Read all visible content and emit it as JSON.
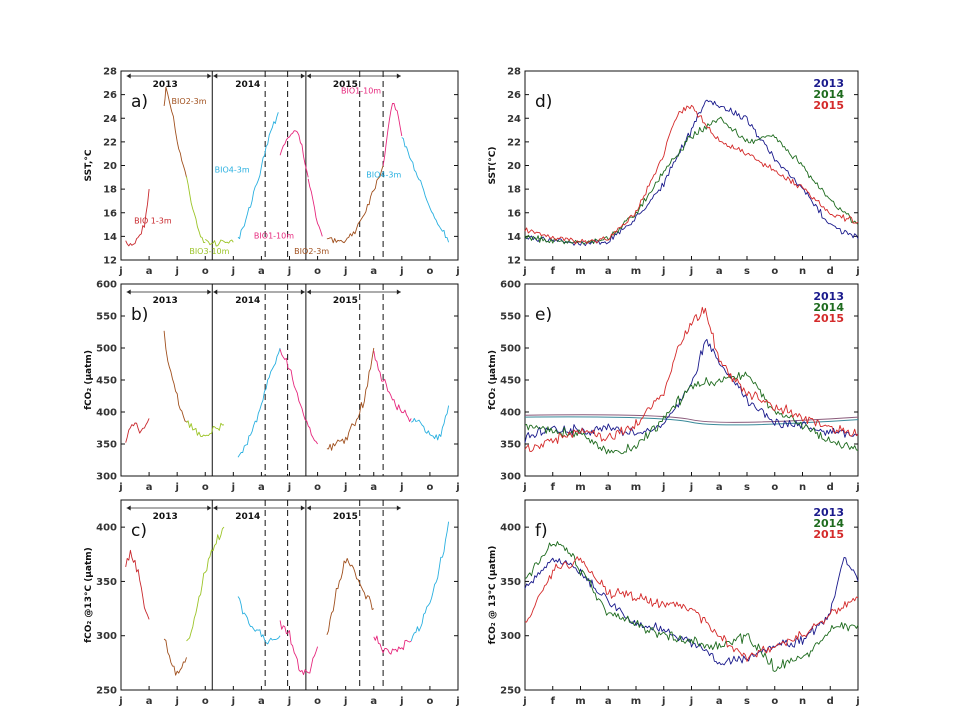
{
  "colors": {
    "y2013": "#1a1a8c",
    "y2014": "#1e6b1e",
    "y2015": "#d42a2a",
    "bio1_3m": "#c8282d",
    "bio2_3m": "#a0501e",
    "bio3_10m": "#9cc428",
    "bio4_3m": "#2ab0e0",
    "bio1_10m": "#e6287d"
  },
  "chart_data": [
    {
      "id": "a",
      "type": "line",
      "panel_label": "a)",
      "title": "",
      "xlabel": "",
      "ylabel": "SST,°C",
      "ylim": [
        12,
        28
      ],
      "yticks": [
        12,
        14,
        16,
        18,
        20,
        22,
        24,
        26,
        28
      ],
      "xlim": [
        0,
        36
      ],
      "xtick_labels": [
        "j",
        "a",
        "j",
        "o",
        "j",
        "a",
        "j",
        "o",
        "j",
        "a",
        "j",
        "o",
        "j"
      ],
      "x_unit": "months since Jan 2013",
      "year_labels": [
        "2013",
        "2014",
        "2015"
      ],
      "annotations": [
        {
          "text": "BIO2-3m",
          "x": 5.4,
          "y": 25.2,
          "color_key": "bio2_3m"
        },
        {
          "text": "BIO 1-3m",
          "x": 1.4,
          "y": 15.1,
          "color_key": "bio1_3m"
        },
        {
          "text": "BIO3-10m",
          "x": 7.3,
          "y": 12.5,
          "color_key": "bio3_10m"
        },
        {
          "text": "BIO4-3m",
          "x": 10.0,
          "y": 19.4,
          "color_key": "bio4_3m"
        },
        {
          "text": "BIO1-10m",
          "x": 14.2,
          "y": 13.8,
          "color_key": "bio1_10m"
        },
        {
          "text": "BIO2-3m",
          "x": 18.5,
          "y": 12.5,
          "color_key": "bio2_3m"
        },
        {
          "text": "BIO1-10m",
          "x": 23.5,
          "y": 26.1,
          "color_key": "bio1_10m"
        },
        {
          "text": "BIO4-3m",
          "x": 26.2,
          "y": 19.0,
          "color_key": "bio4_3m"
        }
      ],
      "series": [
        {
          "color_key": "bio1_3m",
          "x": [
            0.5,
            1.0,
            1.5,
            2.0,
            2.5,
            3.0
          ],
          "y": [
            13.3,
            13.3,
            13.5,
            14.2,
            15.0,
            18.0
          ]
        },
        {
          "color_key": "bio2_3m",
          "x": [
            4.6,
            4.8,
            5.2,
            5.6,
            6.0,
            6.5,
            7.0
          ],
          "y": [
            25.0,
            26.5,
            25.5,
            24.0,
            22.0,
            20.5,
            19.0
          ]
        },
        {
          "color_key": "bio3_10m",
          "x": [
            7.0,
            7.5,
            8.0,
            8.5,
            9.0
          ],
          "y": [
            19.0,
            17.0,
            15.5,
            14.0,
            13.5
          ]
        },
        {
          "color_key": "bio3_10m",
          "x": [
            9.0,
            10.0,
            11.0,
            12.0
          ],
          "y": [
            13.5,
            13.4,
            13.6,
            13.5
          ]
        },
        {
          "color_key": "bio4_3m",
          "x": [
            12.5,
            13.0,
            14.0,
            15.0,
            16.0,
            16.8
          ],
          "y": [
            13.6,
            14.5,
            17.0,
            20.0,
            23.0,
            24.5
          ]
        },
        {
          "color_key": "bio1_10m",
          "x": [
            17.0,
            17.5,
            18.0,
            18.5,
            19.0,
            19.5,
            20.0
          ],
          "y": [
            21.0,
            22.0,
            22.5,
            23.0,
            22.5,
            21.0,
            19.0
          ]
        },
        {
          "color_key": "bio1_10m",
          "x": [
            20.0,
            20.5,
            21.0,
            21.5
          ],
          "y": [
            19.0,
            17.0,
            15.0,
            14.0
          ]
        },
        {
          "color_key": "bio2_3m",
          "x": [
            22.0,
            23.0,
            24.0,
            25.0,
            26.0,
            27.0,
            28.0
          ],
          "y": [
            14.0,
            13.5,
            13.6,
            14.5,
            16.0,
            18.0,
            20.0
          ]
        },
        {
          "color_key": "bio1_10m",
          "x": [
            28.0,
            28.5,
            29.0,
            29.5,
            30.0
          ],
          "y": [
            20.0,
            23.0,
            25.5,
            24.5,
            22.5
          ]
        },
        {
          "color_key": "bio4_3m",
          "x": [
            30.0,
            31.0,
            32.0,
            33.0,
            34.0,
            35.0
          ],
          "y": [
            22.5,
            20.5,
            18.5,
            16.5,
            15.0,
            13.5
          ]
        }
      ]
    },
    {
      "id": "b",
      "type": "line",
      "panel_label": "b)",
      "title": "",
      "xlabel": "",
      "ylabel": "fCO₂ (μatm)",
      "ylim": [
        300,
        600
      ],
      "yticks": [
        300,
        350,
        400,
        450,
        500,
        550,
        600
      ],
      "xlim": [
        0,
        36
      ],
      "xtick_labels": [
        "j",
        "a",
        "j",
        "o",
        "j",
        "a",
        "j",
        "o",
        "j",
        "a",
        "j",
        "o",
        "j"
      ],
      "year_labels": [
        "2013",
        "2014",
        "2015"
      ],
      "series": [
        {
          "color_key": "bio1_3m",
          "x": [
            0.5,
            1.0,
            1.5,
            2.0,
            2.5,
            3.0
          ],
          "y": [
            360,
            375,
            380,
            370,
            380,
            390
          ]
        },
        {
          "color_key": "bio2_3m",
          "x": [
            4.6,
            5.0,
            5.5,
            6.0,
            6.5,
            7.0
          ],
          "y": [
            520,
            480,
            450,
            420,
            400,
            385
          ]
        },
        {
          "color_key": "bio3_10m",
          "x": [
            7.0,
            8.0,
            9.0,
            10.0,
            11.0
          ],
          "y": [
            385,
            370,
            365,
            375,
            380
          ]
        },
        {
          "color_key": "bio4_3m",
          "x": [
            12.5,
            13.0,
            14.0,
            15.0,
            16.0,
            17.0
          ],
          "y": [
            330,
            340,
            370,
            410,
            460,
            500
          ]
        },
        {
          "color_key": "bio1_10m",
          "x": [
            17.0,
            18.0,
            19.0,
            20.0,
            21.0
          ],
          "y": [
            500,
            470,
            420,
            380,
            350
          ]
        },
        {
          "color_key": "bio2_3m",
          "x": [
            22.0,
            23.0,
            24.0,
            25.0,
            26.0,
            27.0
          ],
          "y": [
            340,
            350,
            360,
            380,
            420,
            500
          ]
        },
        {
          "color_key": "bio1_10m",
          "x": [
            27.0,
            28.0,
            29.0,
            30.0,
            31.0
          ],
          "y": [
            490,
            450,
            420,
            400,
            390
          ]
        },
        {
          "color_key": "bio4_3m",
          "x": [
            31.0,
            32.0,
            33.0,
            34.0,
            35.0
          ],
          "y": [
            390,
            380,
            365,
            360,
            410
          ]
        }
      ]
    },
    {
      "id": "c",
      "type": "line",
      "panel_label": "c)",
      "title": "",
      "xlabel": "",
      "ylabel": "fCO₂ @13°C (μatm)",
      "ylim": [
        250,
        425
      ],
      "yticks": [
        250,
        300,
        350,
        400
      ],
      "xlim": [
        0,
        36
      ],
      "xtick_labels": [
        "j",
        "a",
        "j",
        "o",
        "j",
        "a",
        "j",
        "o",
        "j",
        "a",
        "j",
        "o",
        "j"
      ],
      "year_labels": [
        "2013",
        "2014",
        "2015"
      ],
      "series": [
        {
          "color_key": "bio1_3m",
          "x": [
            0.5,
            1.0,
            1.5,
            2.0,
            2.5,
            3.0
          ],
          "y": [
            365,
            375,
            370,
            350,
            325,
            315
          ]
        },
        {
          "color_key": "bio2_3m",
          "x": [
            4.6,
            5.0,
            5.5,
            6.0,
            6.5,
            7.0
          ],
          "y": [
            300,
            285,
            270,
            265,
            270,
            280
          ]
        },
        {
          "color_key": "bio3_10m",
          "x": [
            7.0,
            8.0,
            9.0,
            10.0,
            11.0
          ],
          "y": [
            290,
            320,
            360,
            385,
            400
          ]
        },
        {
          "color_key": "bio4_3m",
          "x": [
            12.5,
            13.0,
            14.0,
            15.0,
            16.0,
            17.0
          ],
          "y": [
            335,
            320,
            310,
            300,
            295,
            300
          ]
        },
        {
          "color_key": "bio1_10m",
          "x": [
            17.0,
            18.0,
            19.0,
            20.0,
            21.0
          ],
          "y": [
            310,
            300,
            270,
            265,
            290
          ]
        },
        {
          "color_key": "bio2_3m",
          "x": [
            22.0,
            23.0,
            24.0,
            25.0,
            26.0,
            27.0
          ],
          "y": [
            300,
            340,
            370,
            360,
            340,
            325
          ]
        },
        {
          "color_key": "bio1_10m",
          "x": [
            27.0,
            28.0,
            29.0,
            30.0,
            31.0
          ],
          "y": [
            300,
            285,
            285,
            290,
            295
          ]
        },
        {
          "color_key": "bio4_3m",
          "x": [
            31.0,
            32.0,
            33.0,
            34.0,
            35.0
          ],
          "y": [
            300,
            310,
            330,
            360,
            405
          ]
        }
      ]
    },
    {
      "id": "d",
      "type": "line",
      "panel_label": "d)",
      "title": "",
      "xlabel": "",
      "ylabel": "SST(°C)",
      "ylim": [
        12,
        28
      ],
      "yticks": [
        12,
        14,
        16,
        18,
        20,
        22,
        24,
        26,
        28
      ],
      "xlim": [
        0,
        12
      ],
      "xtick_labels": [
        "j",
        "f",
        "m",
        "a",
        "m",
        "j",
        "j",
        "a",
        "s",
        "o",
        "n",
        "d",
        "j"
      ],
      "legend": [
        "2013",
        "2014",
        "2015"
      ],
      "legend_loc": "top-right",
      "series": [
        {
          "name": "2013",
          "color_key": "y2013",
          "x": [
            0.0,
            1.0,
            2.0,
            3.0,
            4.0,
            5.0,
            6.0,
            6.5,
            7.0,
            8.0,
            9.0,
            10.0,
            11.0,
            12.0
          ],
          "y": [
            14.0,
            13.6,
            13.4,
            13.6,
            15.5,
            18.5,
            23.0,
            25.5,
            25.0,
            24.0,
            20.5,
            18.0,
            15.0,
            13.8
          ]
        },
        {
          "name": "2014",
          "color_key": "y2014",
          "x": [
            0.0,
            1.0,
            2.0,
            3.0,
            4.0,
            5.0,
            6.0,
            7.0,
            8.0,
            9.0,
            10.0,
            11.0,
            12.0
          ],
          "y": [
            14.0,
            13.6,
            13.5,
            13.8,
            16.0,
            19.5,
            22.5,
            24.0,
            22.0,
            22.5,
            20.0,
            17.0,
            15.0
          ]
        },
        {
          "name": "2015",
          "color_key": "y2015",
          "x": [
            0.0,
            1.0,
            2.0,
            3.0,
            4.0,
            5.0,
            5.5,
            6.0,
            7.0,
            8.0,
            9.0,
            10.0,
            11.0,
            12.0
          ],
          "y": [
            14.5,
            14.0,
            13.5,
            13.8,
            16.0,
            21.0,
            24.5,
            25.0,
            22.0,
            21.0,
            19.5,
            18.0,
            16.0,
            15.2
          ]
        }
      ]
    },
    {
      "id": "e",
      "type": "line",
      "panel_label": "e)",
      "title": "",
      "xlabel": "",
      "ylabel": "fCO₂ (μatm)",
      "ylim": [
        300,
        600
      ],
      "yticks": [
        300,
        350,
        400,
        450,
        500,
        550,
        600
      ],
      "xlim": [
        0,
        12
      ],
      "xtick_labels": [
        "j",
        "f",
        "m",
        "a",
        "m",
        "j",
        "j",
        "a",
        "s",
        "o",
        "n",
        "d",
        "j"
      ],
      "legend": [
        "2013",
        "2014",
        "2015"
      ],
      "legend_loc": "top-right",
      "series": [
        {
          "name": "2013",
          "color_key": "y2013",
          "x": [
            0.0,
            1.0,
            2.0,
            3.0,
            4.0,
            5.0,
            6.0,
            6.5,
            7.0,
            8.0,
            9.0,
            10.0,
            11.0,
            12.0
          ],
          "y": [
            360,
            375,
            370,
            375,
            365,
            380,
            440,
            510,
            480,
            420,
            385,
            380,
            370,
            365
          ]
        },
        {
          "name": "2014",
          "color_key": "y2014",
          "x": [
            0.0,
            1.0,
            2.0,
            3.0,
            4.0,
            5.0,
            6.0,
            7.0,
            8.0,
            9.0,
            10.0,
            11.0,
            12.0
          ],
          "y": [
            380,
            370,
            365,
            335,
            345,
            390,
            440,
            450,
            460,
            400,
            380,
            355,
            340
          ]
        },
        {
          "name": "2015",
          "color_key": "y2015",
          "x": [
            0.0,
            1.0,
            2.0,
            3.0,
            4.0,
            5.0,
            5.5,
            6.0,
            6.5,
            7.0,
            8.0,
            9.0,
            10.0,
            11.0,
            12.0
          ],
          "y": [
            340,
            355,
            370,
            360,
            380,
            430,
            500,
            540,
            560,
            480,
            430,
            410,
            390,
            375,
            365
          ]
        }
      ]
    },
    {
      "id": "f",
      "type": "line",
      "panel_label": "f)",
      "title": "",
      "xlabel": "",
      "ylabel": "fCO₂ @ 13°C (μatm)",
      "ylim": [
        250,
        425
      ],
      "yticks": [
        250,
        300,
        350,
        400
      ],
      "xlim": [
        0,
        12
      ],
      "xtick_labels": [
        "j",
        "f",
        "m",
        "a",
        "m",
        "j",
        "j",
        "a",
        "s",
        "o",
        "n",
        "d",
        "j"
      ],
      "legend": [
        "2013",
        "2014",
        "2015"
      ],
      "legend_loc": "top-right",
      "series": [
        {
          "name": "2013",
          "color_key": "y2013",
          "x": [
            0.0,
            1.0,
            2.0,
            3.0,
            4.0,
            5.0,
            6.0,
            7.0,
            8.0,
            9.0,
            10.0,
            11.0,
            11.5,
            12.0
          ],
          "y": [
            345,
            370,
            360,
            330,
            310,
            305,
            295,
            275,
            280,
            290,
            295,
            320,
            375,
            350
          ]
        },
        {
          "name": "2014",
          "color_key": "y2014",
          "x": [
            0.0,
            1.0,
            1.5,
            2.0,
            3.0,
            4.0,
            5.0,
            6.0,
            7.0,
            8.0,
            9.0,
            10.0,
            11.0,
            12.0
          ],
          "y": [
            350,
            385,
            380,
            360,
            320,
            310,
            300,
            295,
            290,
            300,
            270,
            280,
            305,
            310
          ]
        },
        {
          "name": "2015",
          "color_key": "y2015",
          "x": [
            0.0,
            1.0,
            2.0,
            3.0,
            4.0,
            5.0,
            6.0,
            7.0,
            8.0,
            9.0,
            10.0,
            11.0,
            12.0
          ],
          "y": [
            310,
            360,
            370,
            340,
            335,
            330,
            325,
            300,
            280,
            290,
            300,
            320,
            335
          ]
        }
      ]
    }
  ]
}
